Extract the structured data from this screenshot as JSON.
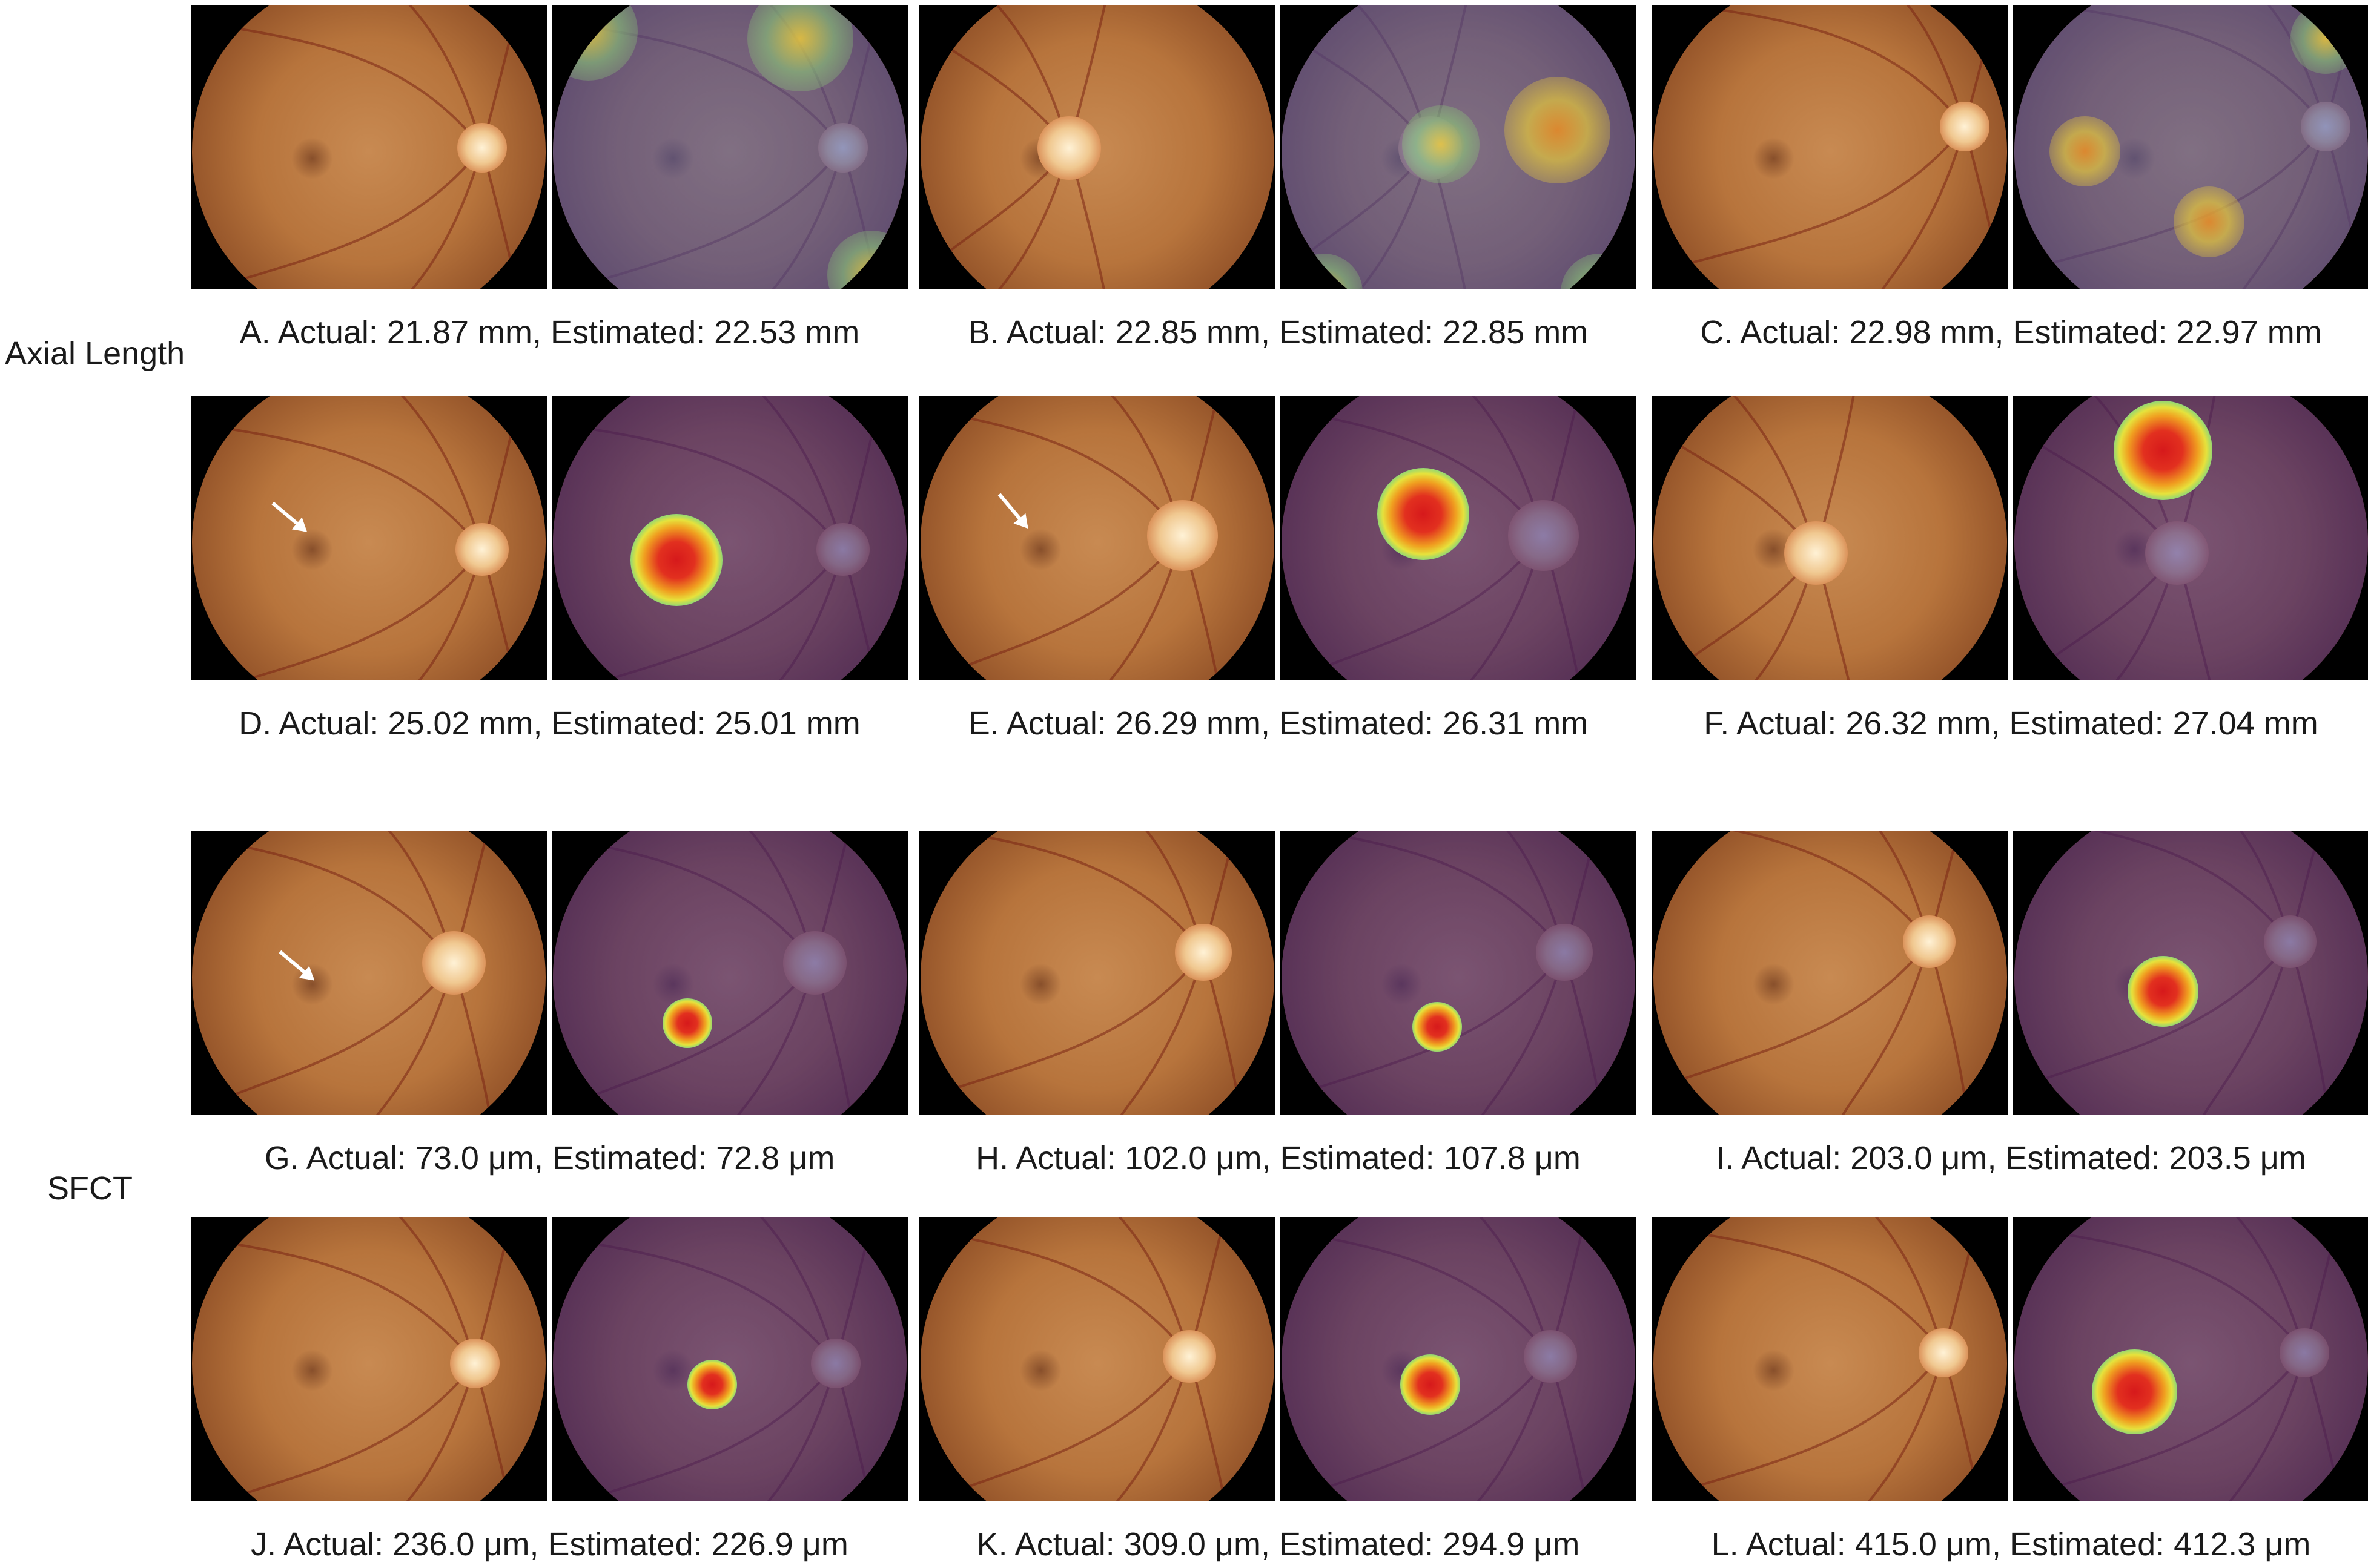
{
  "row_labels": {
    "axial": "Axial Length",
    "sfct": "SFCT"
  },
  "panels": [
    {
      "id": "A",
      "caption": "A. Actual: 21.87 mm, Estimated: 22.53 mm"
    },
    {
      "id": "B",
      "caption": "B. Actual: 22.85 mm, Estimated: 22.85 mm"
    },
    {
      "id": "C",
      "caption": "C. Actual: 22.98 mm, Estimated: 22.97 mm"
    },
    {
      "id": "D",
      "caption": "D. Actual: 25.02 mm, Estimated: 25.01 mm"
    },
    {
      "id": "E",
      "caption": "E. Actual: 26.29 mm, Estimated: 26.31 mm"
    },
    {
      "id": "F",
      "caption": "F. Actual: 26.32 mm, Estimated: 27.04 mm"
    },
    {
      "id": "G",
      "caption": "G. Actual: 73.0 μm, Estimated: 72.8 μm"
    },
    {
      "id": "H",
      "caption": "H. Actual: 102.0 μm, Estimated: 107.8 μm"
    },
    {
      "id": "I",
      "caption": "I. Actual: 203.0 μm, Estimated: 203.5 μm"
    },
    {
      "id": "J",
      "caption": "J. Actual: 236.0 μm, Estimated: 226.9 μm"
    },
    {
      "id": "K",
      "caption": "K. Actual: 309.0 μm, Estimated: 294.9 μm"
    },
    {
      "id": "L",
      "caption": "L. Actual: 415.0 μm, Estimated: 412.3 μm"
    }
  ],
  "colors": {
    "background": "#ffffff",
    "frame": "#000000",
    "fundus": "#b7743c",
    "heatmap_base": "#3c288c",
    "hotspot": "#d6191b"
  }
}
